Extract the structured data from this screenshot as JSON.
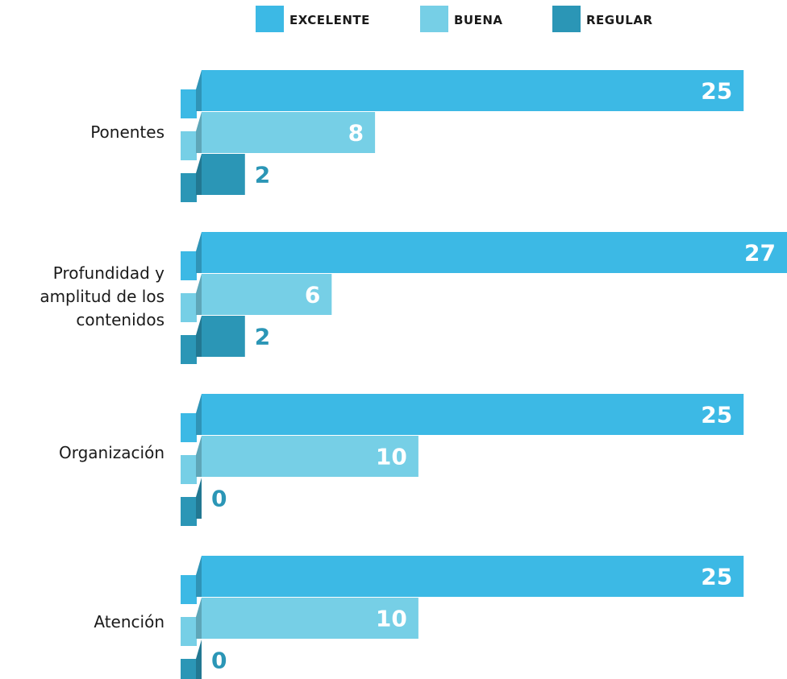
{
  "chart_data": {
    "type": "bar",
    "orientation": "horizontal",
    "categories": [
      "Ponentes",
      "Profundidad y amplitud de los contenidos",
      "Organización",
      "Atención"
    ],
    "category_lines": [
      [
        "Ponentes"
      ],
      [
        "Profundidad y",
        "amplitud de los",
        "contenidos"
      ],
      [
        "Organización"
      ],
      [
        "Atención"
      ]
    ],
    "series": [
      {
        "name": "EXCELENTE",
        "values": [
          25,
          27,
          25,
          25
        ],
        "color": "#3cb9e5"
      },
      {
        "name": "BUENA",
        "values": [
          8,
          6,
          10,
          10
        ],
        "color": "#76cfe6"
      },
      {
        "name": "REGULAR",
        "values": [
          2,
          2,
          0,
          0
        ],
        "color": "#2b96b6"
      }
    ],
    "xlim": [
      0,
      27
    ],
    "legend_position": "top-center",
    "grid": false,
    "data_labels": true
  },
  "colors": {
    "excelente": "#3cb9e5",
    "buena": "#76cfe6",
    "regular": "#2b96b6"
  }
}
